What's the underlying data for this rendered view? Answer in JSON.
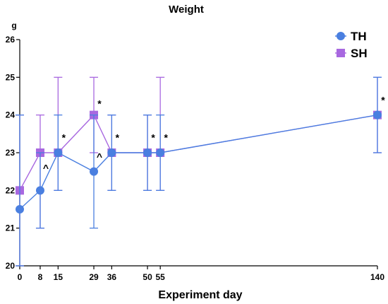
{
  "chart_data": {
    "type": "line",
    "title": "Weight",
    "ylabel": "g",
    "xlabel": "Experiment day",
    "x_ticks": [
      0,
      8,
      15,
      29,
      36,
      50,
      55,
      140
    ],
    "ylim": [
      20,
      26
    ],
    "y_ticks": [
      20,
      21,
      22,
      23,
      24,
      25,
      26
    ],
    "xlim": [
      0,
      140
    ],
    "legend_position": "top-right",
    "series": [
      {
        "name": "TH",
        "color": "#4a7fe0",
        "marker": "circle",
        "points": [
          {
            "x": 0,
            "y": 21.5,
            "err_low": 20.0,
            "err_high": 24.0
          },
          {
            "x": 8,
            "y": 22.0,
            "err_low": 21.0,
            "err_high": 23.0
          },
          {
            "x": 15,
            "y": 23.0,
            "err_low": 22.0,
            "err_high": 24.0
          },
          {
            "x": 29,
            "y": 22.5,
            "err_low": 21.0,
            "err_high": 24.0
          },
          {
            "x": 36,
            "y": 23.0,
            "err_low": 22.0,
            "err_high": 24.0
          },
          {
            "x": 50,
            "y": 23.0,
            "err_low": 22.0,
            "err_high": 24.0
          },
          {
            "x": 55,
            "y": 23.0,
            "err_low": 22.0,
            "err_high": 24.0
          },
          {
            "x": 140,
            "y": 24.0,
            "err_low": 23.0,
            "err_high": 25.0
          }
        ]
      },
      {
        "name": "SH",
        "color": "#a868e0",
        "marker": "square",
        "points": [
          {
            "x": 0,
            "y": 22.0,
            "err_low": 20.0,
            "err_high": 24.0
          },
          {
            "x": 8,
            "y": 23.0,
            "err_low": 21.0,
            "err_high": 24.0
          },
          {
            "x": 15,
            "y": 23.0,
            "err_low": 22.0,
            "err_high": 25.0
          },
          {
            "x": 29,
            "y": 24.0,
            "err_low": 23.0,
            "err_high": 25.0
          },
          {
            "x": 36,
            "y": 23.0,
            "err_low": 22.0,
            "err_high": 24.0
          },
          {
            "x": 50,
            "y": 23.0,
            "err_low": 22.0,
            "err_high": 24.0
          },
          {
            "x": 55,
            "y": 23.0,
            "err_low": 22.0,
            "err_high": 25.0
          },
          {
            "x": 140,
            "y": 24.0,
            "err_low": 23.0,
            "err_high": 25.0
          }
        ]
      }
    ],
    "annotations": [
      {
        "text": "^",
        "x": 8,
        "y": 22.6
      },
      {
        "text": "*",
        "x": 15,
        "y": 23.4
      },
      {
        "text": "*",
        "x": 29,
        "y": 24.3
      },
      {
        "text": "^",
        "x": 29,
        "y": 22.9
      },
      {
        "text": "*",
        "x": 36,
        "y": 23.4
      },
      {
        "text": "*",
        "x": 50,
        "y": 23.4
      },
      {
        "text": "*",
        "x": 55,
        "y": 23.4
      },
      {
        "text": "*",
        "x": 140,
        "y": 24.4
      }
    ]
  }
}
